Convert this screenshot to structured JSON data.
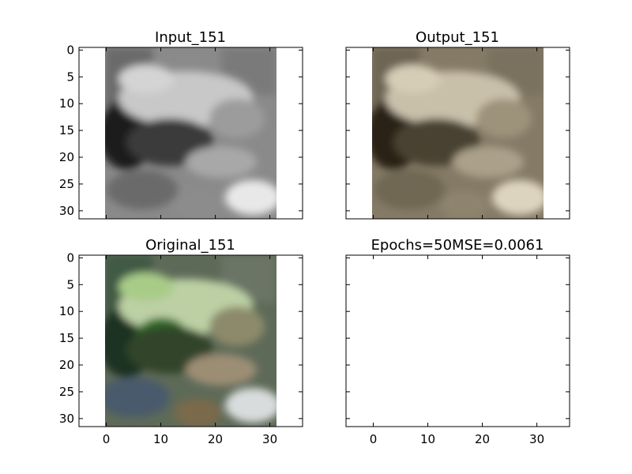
{
  "chart_data": [
    {
      "type": "image",
      "title": "Input_151",
      "image_description": "grayscale 32x32 photo of a frog",
      "xlim": [
        -5,
        36
      ],
      "ylim": [
        31.5,
        -0.5
      ],
      "yticks": [
        0,
        5,
        10,
        15,
        20,
        25,
        30
      ],
      "xticks": [],
      "colormap": "gray"
    },
    {
      "type": "image",
      "title": "Output_151",
      "image_description": "sepia-toned reconstructed 32x32 frog image",
      "xlim": [
        -5,
        36
      ],
      "ylim": [
        31.5,
        -0.5
      ],
      "yticks": [],
      "xticks": [],
      "colormap": "sepia"
    },
    {
      "type": "image",
      "title": "Original_151",
      "image_description": "color 32x32 photo of a green frog on rocks",
      "xlim": [
        -5,
        36
      ],
      "ylim": [
        31.5,
        -0.5
      ],
      "yticks": [
        0,
        5,
        10,
        15,
        20,
        25,
        30
      ],
      "xticks": [
        0,
        10,
        20,
        30
      ],
      "colormap": "color"
    },
    {
      "type": "empty",
      "title": "Epochs=50MSE=0.0061",
      "xlim": [
        -5,
        36
      ],
      "ylim": [
        31.5,
        -0.5
      ],
      "yticks": [],
      "xticks": [
        0,
        10,
        20,
        30
      ]
    }
  ]
}
